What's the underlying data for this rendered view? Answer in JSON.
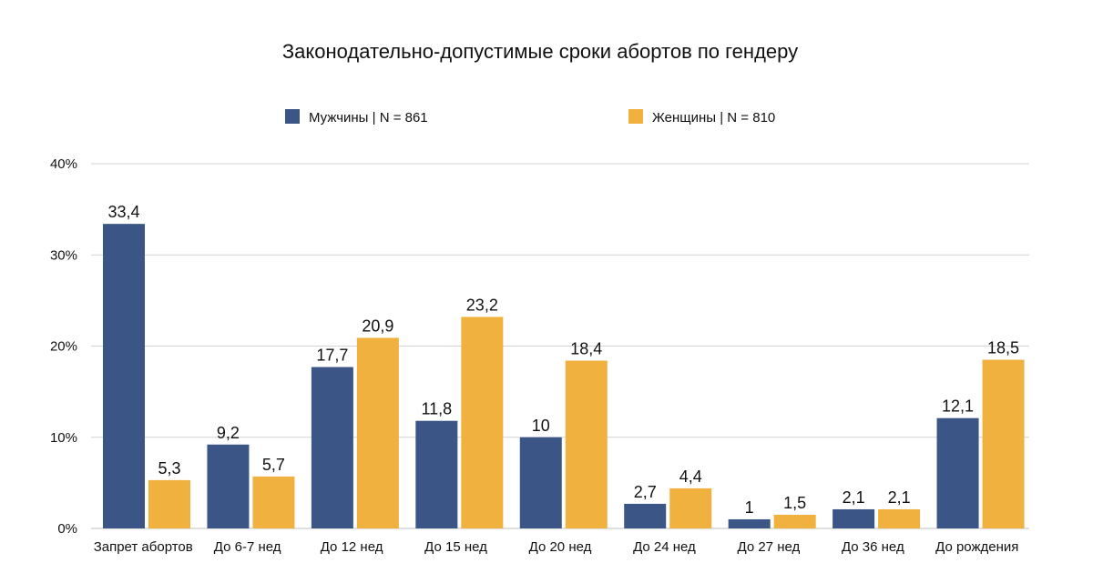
{
  "chart_data": {
    "type": "bar",
    "title": "Законодательно-допустимые сроки абортов по гендеру",
    "xlabel": "",
    "ylabel": "",
    "ylim": [
      0,
      40
    ],
    "y_ticks": [
      0,
      10,
      20,
      30,
      40
    ],
    "y_tick_labels": [
      "0%",
      "10%",
      "20%",
      "30%",
      "40%"
    ],
    "grid": true,
    "legend_position": "top",
    "categories": [
      "Запрет абортов",
      "До 6-7 нед",
      "До 12 нед",
      "До 15 нед",
      "До 20 нед",
      "До 24 нед",
      "До 27 нед",
      "До 36 нед",
      "До рождения"
    ],
    "series": [
      {
        "name": "Мужчины | N = 861",
        "color": "#3b5586",
        "values": [
          33.4,
          9.2,
          17.7,
          11.8,
          10,
          2.7,
          1,
          2.1,
          12.1
        ],
        "labels": [
          "33,4",
          "9,2",
          "17,7",
          "11,8",
          "10",
          "2,7",
          "1",
          "2,1",
          "12,1"
        ]
      },
      {
        "name": "Женщины | N = 810",
        "color": "#f0b13e",
        "values": [
          5.3,
          5.7,
          20.9,
          23.2,
          18.4,
          4.4,
          1.5,
          2.1,
          18.5
        ],
        "labels": [
          "5,3",
          "5,7",
          "20,9",
          "23,2",
          "18,4",
          "4,4",
          "1,5",
          "2,1",
          "18,5"
        ]
      }
    ]
  }
}
